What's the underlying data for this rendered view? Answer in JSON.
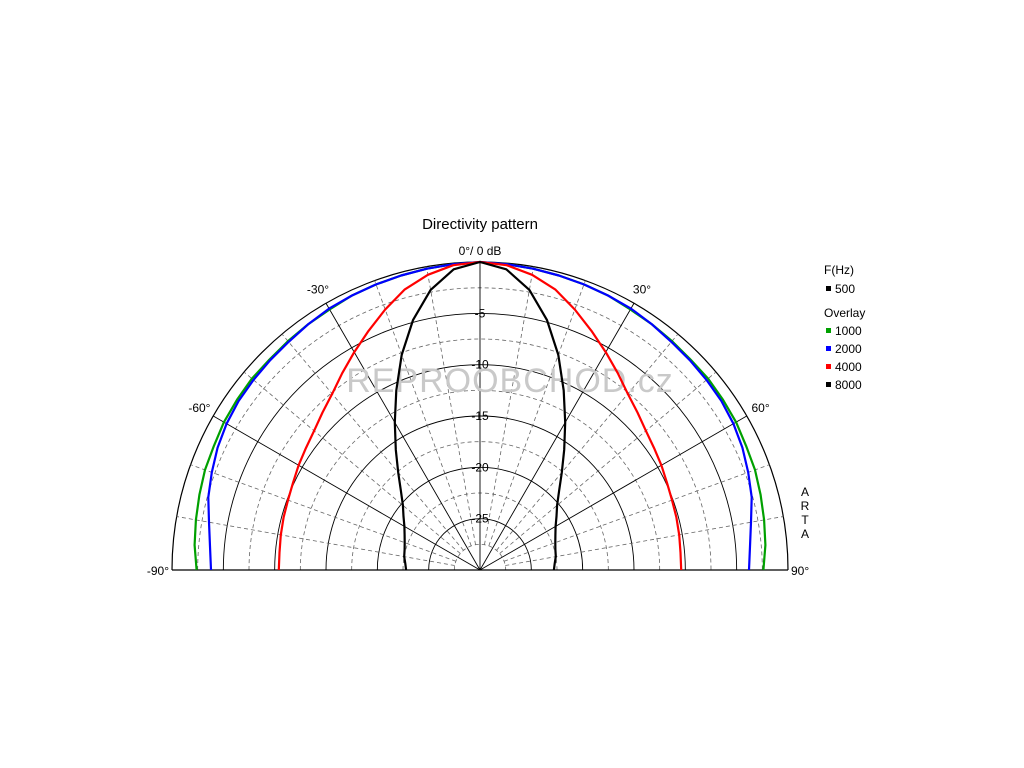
{
  "chart_data": {
    "type": "polar",
    "title": "Directivity pattern",
    "r_min": -30,
    "r_max": 0,
    "r_ticks": [
      -5,
      -10,
      -15,
      -20,
      -25
    ],
    "r_tick_labels": [
      "-5",
      "-10",
      "-15",
      "-20",
      "-25"
    ],
    "top_label": "0°/ 0 dB",
    "angle_labels": [
      {
        "angle": -90,
        "label": "-90°"
      },
      {
        "angle": -60,
        "label": "-60°"
      },
      {
        "angle": -30,
        "label": "-30°"
      },
      {
        "angle": 30,
        "label": "30°"
      },
      {
        "angle": 60,
        "label": "60°"
      },
      {
        "angle": 90,
        "label": "90°"
      }
    ],
    "side_label": [
      "A",
      "R",
      "T",
      "A"
    ],
    "watermark": "REPROOBCHOD.cz",
    "legend": {
      "header": "F(Hz)",
      "main": {
        "name": "500",
        "color": "#000000"
      },
      "overlay_header": "Overlay",
      "overlay": [
        {
          "name": "1000",
          "color": "#00a000"
        },
        {
          "name": "2000",
          "color": "#0000ff"
        },
        {
          "name": "4000",
          "color": "#ff0000"
        },
        {
          "name": "8000",
          "color": "#000000"
        }
      ]
    },
    "angles": [
      0,
      5,
      10,
      15,
      20,
      25,
      30,
      35,
      40,
      45,
      50,
      55,
      60,
      65,
      70,
      75,
      80,
      85,
      90
    ],
    "series": [
      {
        "name": "1000",
        "color": "#00a000",
        "values": [
          0,
          -0.1,
          -0.2,
          -0.3,
          -0.4,
          -0.5,
          -0.7,
          -0.8,
          -0.9,
          -1.0,
          -1.0,
          -1.1,
          -1.2,
          -1.4,
          -1.5,
          -1.7,
          -1.9,
          -2.1,
          -2.4
        ]
      },
      {
        "name": "2000",
        "color": "#0000ff",
        "values": [
          0,
          -0.1,
          -0.2,
          -0.3,
          -0.4,
          -0.5,
          -0.6,
          -0.8,
          -1.0,
          -1.1,
          -1.2,
          -1.3,
          -1.5,
          -1.8,
          -2.2,
          -2.6,
          -3.2,
          -3.6,
          -3.8
        ]
      },
      {
        "name": "4000",
        "color": "#ff0000",
        "values": [
          0,
          -0.2,
          -0.8,
          -1.7,
          -3.0,
          -4.3,
          -5.5,
          -6.6,
          -7.6,
          -8.3,
          -8.9,
          -9.3,
          -9.6,
          -9.9,
          -10.1,
          -10.2,
          -10.3,
          -10.4,
          -10.4
        ]
      },
      {
        "name": "8000",
        "color": "#000000",
        "values": [
          0,
          -0.6,
          -2.3,
          -4.8,
          -7.7,
          -10.7,
          -13.4,
          -15.7,
          -17.6,
          -19.1,
          -20.2,
          -20.9,
          -21.5,
          -21.9,
          -22.2,
          -22.4,
          -22.5,
          -22.7,
          -22.8
        ]
      }
    ]
  }
}
